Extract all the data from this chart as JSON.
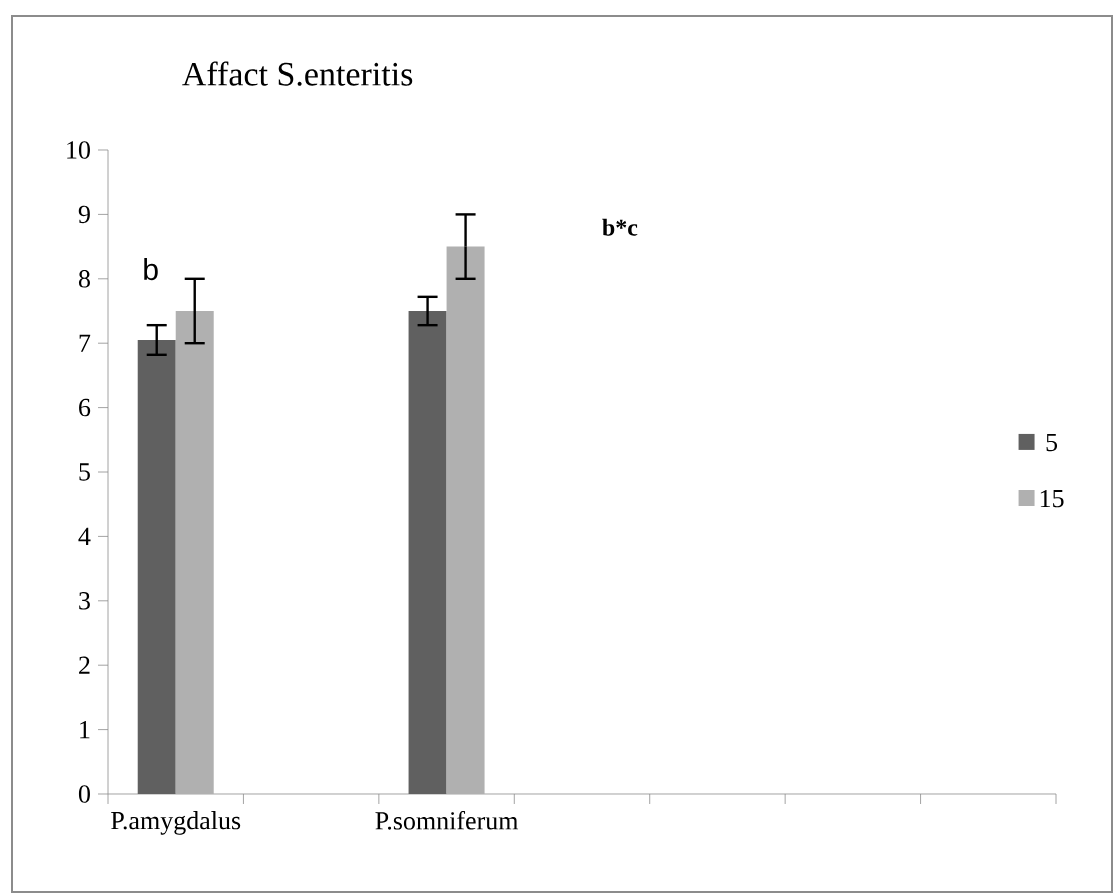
{
  "chart_data": {
    "type": "bar",
    "title": "Affact S.enteritis",
    "categories": [
      "P.amygdalus",
      null,
      "P.somniferum",
      null,
      null,
      null,
      null
    ],
    "series": [
      {
        "name": "5",
        "color": "#606060",
        "values": [
          7.05,
          null,
          7.5,
          null,
          null,
          null,
          null
        ],
        "errors": [
          0.23,
          null,
          0.22,
          null,
          null,
          null,
          null
        ]
      },
      {
        "name": "15",
        "color": "#b0b0b0",
        "values": [
          7.5,
          null,
          8.5,
          null,
          null,
          null,
          null
        ],
        "errors": [
          0.5,
          null,
          0.5,
          null,
          null,
          null,
          null
        ]
      }
    ],
    "ylim": [
      0,
      10
    ],
    "yticks": [
      0,
      1,
      2,
      3,
      4,
      5,
      6,
      7,
      8,
      9,
      10
    ],
    "annotations": [
      "b",
      "b*c"
    ],
    "grid": false,
    "legend": "right"
  }
}
